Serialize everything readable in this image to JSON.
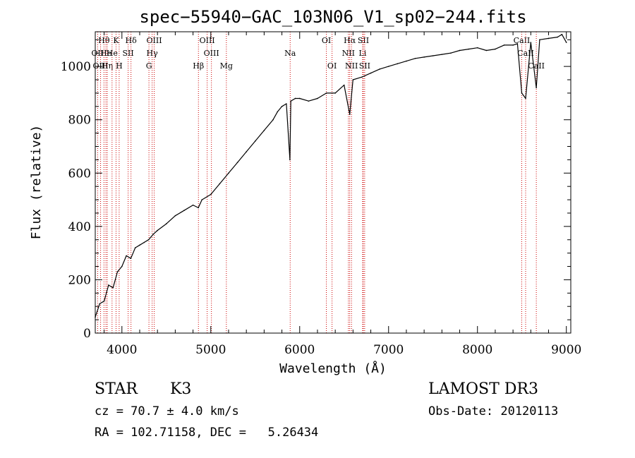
{
  "chart_data": {
    "type": "line",
    "title": "spec−55940−GAC_103N06_V1_sp02−244.fits",
    "xlabel": "Wavelength (Å)",
    "ylabel": "Flux (relative)",
    "xlim": [
      3700,
      9050
    ],
    "ylim": [
      0,
      1130
    ],
    "xticks": [
      4000,
      5000,
      6000,
      7000,
      8000,
      9000
    ],
    "yticks": [
      0,
      200,
      400,
      600,
      800,
      1000
    ],
    "grid": false,
    "series": [
      {
        "name": "flux",
        "x": [
          3700,
          3750,
          3800,
          3850,
          3900,
          3950,
          4000,
          4050,
          4100,
          4150,
          4200,
          4250,
          4300,
          4350,
          4400,
          4500,
          4600,
          4700,
          4800,
          4860,
          4900,
          5000,
          5100,
          5200,
          5300,
          5400,
          5500,
          5600,
          5700,
          5750,
          5800,
          5850,
          5890,
          5900,
          5950,
          6000,
          6100,
          6200,
          6300,
          6400,
          6500,
          6563,
          6600,
          6700,
          6800,
          6900,
          7000,
          7100,
          7200,
          7300,
          7400,
          7500,
          7600,
          7700,
          7800,
          7900,
          8000,
          8100,
          8200,
          8300,
          8400,
          8450,
          8498,
          8542,
          8600,
          8662,
          8700,
          8800,
          8900,
          8950,
          9000
        ],
        "y": [
          60,
          110,
          120,
          180,
          170,
          230,
          250,
          290,
          280,
          320,
          330,
          340,
          350,
          370,
          385,
          410,
          440,
          460,
          480,
          470,
          500,
          520,
          560,
          600,
          640,
          680,
          720,
          760,
          800,
          830,
          850,
          860,
          650,
          870,
          880,
          880,
          870,
          880,
          900,
          900,
          930,
          820,
          950,
          960,
          975,
          990,
          1000,
          1010,
          1020,
          1030,
          1035,
          1040,
          1045,
          1050,
          1060,
          1065,
          1070,
          1060,
          1065,
          1080,
          1080,
          1085,
          900,
          880,
          1090,
          920,
          1100,
          1105,
          1110,
          1120,
          1090
        ]
      }
    ],
    "lines": [
      {
        "label": "Hθ",
        "wave": 3798,
        "row": 0
      },
      {
        "label": "OII",
        "wave": 3727,
        "row": 1
      },
      {
        "label": "OIII",
        "wave": 3760,
        "row": 2
      },
      {
        "label": "He",
        "wave": 3820,
        "row": 1
      },
      {
        "label": "K",
        "wave": 3934,
        "row": 0
      },
      {
        "label": "Hη",
        "wave": 3835,
        "row": 2
      },
      {
        "label": "H",
        "wave": 3969,
        "row": 2
      },
      {
        "label": "He",
        "wave": 3889,
        "row": 1
      },
      {
        "label": "SII",
        "wave": 4070,
        "row": 1
      },
      {
        "label": "Hδ",
        "wave": 4102,
        "row": 0
      },
      {
        "label": "OIII",
        "wave": 4363,
        "row": 0
      },
      {
        "label": "Hγ",
        "wave": 4340,
        "row": 1
      },
      {
        "label": "G",
        "wave": 4304,
        "row": 2
      },
      {
        "label": "OIII",
        "wave": 4959,
        "row": 0
      },
      {
        "label": "OIII",
        "wave": 5007,
        "row": 1
      },
      {
        "label": "Hβ",
        "wave": 4861,
        "row": 2
      },
      {
        "label": "Mg",
        "wave": 5175,
        "row": 2
      },
      {
        "label": "Na",
        "wave": 5893,
        "row": 1
      },
      {
        "label": "OI",
        "wave": 6300,
        "row": 0
      },
      {
        "label": "OI",
        "wave": 6364,
        "row": 2
      },
      {
        "label": "Hα",
        "wave": 6563,
        "row": 0
      },
      {
        "label": "NII",
        "wave": 6548,
        "row": 1
      },
      {
        "label": "NII",
        "wave": 6583,
        "row": 2
      },
      {
        "label": "SII",
        "wave": 6716,
        "row": 0
      },
      {
        "label": "Li",
        "wave": 6708,
        "row": 1
      },
      {
        "label": "SII",
        "wave": 6731,
        "row": 2
      },
      {
        "label": "CaII",
        "wave": 8498,
        "row": 0
      },
      {
        "label": "CaII",
        "wave": 8542,
        "row": 1
      },
      {
        "label": "CaII",
        "wave": 8662,
        "row": 2
      }
    ]
  },
  "info": {
    "class": "STAR",
    "subclass": "K3",
    "survey": "LAMOST DR3",
    "cz": "cz = 70.7 ± 4.0 km/s",
    "obs_date": "Obs-Date: 20120113",
    "radec": "RA = 102.71158, DEC =   5.26434"
  }
}
